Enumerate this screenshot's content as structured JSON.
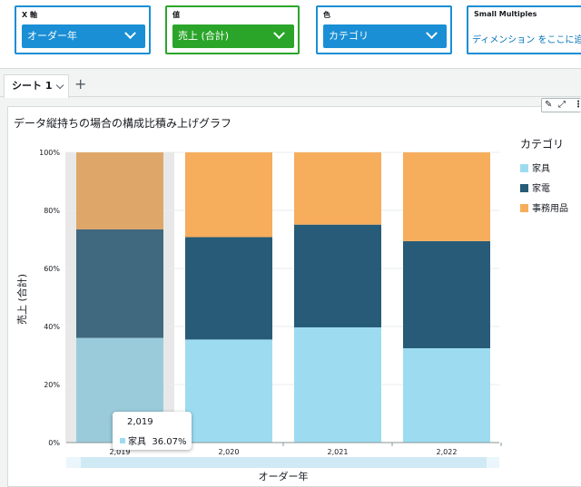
{
  "field_wells": {
    "x_axis": {
      "label": "X 軸",
      "value": "オーダー年"
    },
    "value": {
      "label": "値",
      "value": "売上 (合計)"
    },
    "color": {
      "label": "色",
      "value": "カテゴリ"
    },
    "small_multiples": {
      "label": "Small Multiples",
      "placeholder": "ディメンション をここに追"
    }
  },
  "sheets": {
    "active": "シート 1",
    "add": "+"
  },
  "visual": {
    "title": "データ縦持ちの場合の構成比積み上げグラフ",
    "tools": {
      "edit": "✎",
      "expand": "⤢",
      "menu": "⋮"
    }
  },
  "chart_data": {
    "type": "bar",
    "stacked": true,
    "percent_stacked": true,
    "title": "データ縦持ちの場合の構成比積み上げグラフ",
    "xlabel": "オーダー年",
    "ylabel": "売上 (合計)",
    "categories": [
      "2,019",
      "2,020",
      "2,021",
      "2,022"
    ],
    "ylim": [
      0,
      100
    ],
    "yticks": [
      "0%",
      "20%",
      "40%",
      "60%",
      "80%",
      "100%"
    ],
    "series": [
      {
        "name": "家具",
        "color": "#9ddcf0",
        "values": [
          36.07,
          35.5,
          39.7,
          32.5
        ]
      },
      {
        "name": "家電",
        "color": "#275b78",
        "values": [
          37.4,
          35.3,
          35.4,
          36.9
        ]
      },
      {
        "name": "事務用品",
        "color": "#f6ad5c",
        "values": [
          26.53,
          29.2,
          24.9,
          30.6
        ]
      }
    ],
    "legend": {
      "title": "カテゴリ",
      "position": "right"
    },
    "highlighted_category": "2,019",
    "tooltip": {
      "title": "2,019",
      "series": "家具",
      "value": "36.07%"
    }
  }
}
